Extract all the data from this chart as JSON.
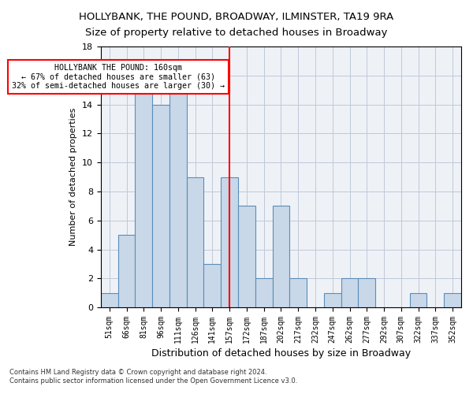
{
  "title": "HOLLYBANK, THE POUND, BROADWAY, ILMINSTER, TA19 9RA",
  "subtitle": "Size of property relative to detached houses in Broadway",
  "xlabel": "Distribution of detached houses by size in Broadway",
  "ylabel": "Number of detached properties",
  "bar_values": [
    1,
    5,
    15,
    14,
    15,
    9,
    3,
    9,
    7,
    2,
    7,
    2,
    0,
    1,
    2,
    2,
    0,
    0,
    1,
    0,
    1
  ],
  "bar_labels": [
    "51sqm",
    "66sqm",
    "81sqm",
    "96sqm",
    "111sqm",
    "126sqm",
    "141sqm",
    "157sqm",
    "172sqm",
    "187sqm",
    "202sqm",
    "217sqm",
    "232sqm",
    "247sqm",
    "262sqm",
    "277sqm",
    "292sqm",
    "307sqm",
    "322sqm",
    "337sqm",
    "352sqm"
  ],
  "bar_color": "#c8d8e8",
  "bar_edge_color": "#5b8db8",
  "vline_index": 7,
  "vline_color": "red",
  "ylim": [
    0,
    18
  ],
  "yticks": [
    0,
    2,
    4,
    6,
    8,
    10,
    12,
    14,
    16,
    18
  ],
  "annotation_title": "HOLLYBANK THE POUND: 160sqm",
  "annotation_line1": "← 67% of detached houses are smaller (63)",
  "annotation_line2": "32% of semi-detached houses are larger (30) →",
  "annotation_box_color": "white",
  "annotation_box_edge_color": "red",
  "footer1": "Contains HM Land Registry data © Crown copyright and database right 2024.",
  "footer2": "Contains public sector information licensed under the Open Government Licence v3.0.",
  "axes_bg_color": "#eef2f7",
  "fig_bg_color": "white",
  "grid_color": "#c0c8d8",
  "title_fontsize": 9.5,
  "ylabel_fontsize": 8,
  "xlabel_fontsize": 9,
  "tick_fontsize": 8,
  "xtick_fontsize": 7
}
